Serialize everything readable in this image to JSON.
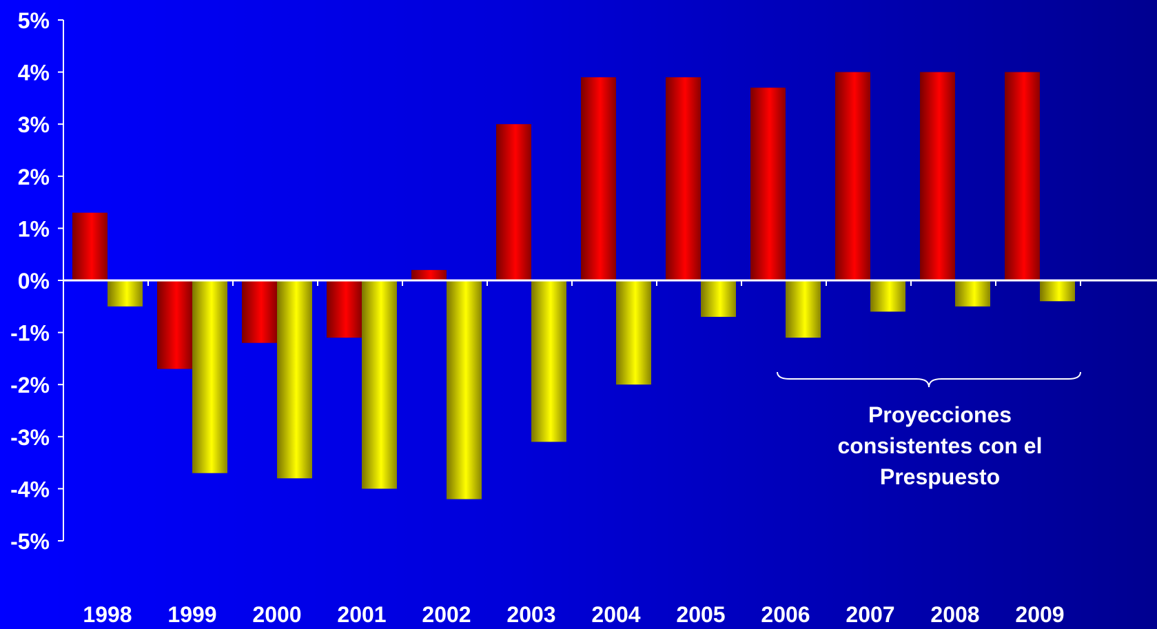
{
  "chart_data": {
    "type": "bar",
    "categories": [
      "1998",
      "1999",
      "2000",
      "2001",
      "2002",
      "2003",
      "2004",
      "2005",
      "2006",
      "2007",
      "2008",
      "2009"
    ],
    "series": [
      {
        "values": [
          1.3,
          -1.7,
          -1.2,
          -1.1,
          0.2,
          3.0,
          3.9,
          3.9,
          3.7,
          4.0,
          4.0,
          4.0
        ],
        "color": "#ff0000"
      },
      {
        "values": [
          -0.5,
          -3.7,
          -3.8,
          -4.0,
          -4.2,
          -3.1,
          -2.0,
          -0.7,
          -1.1,
          -0.6,
          -0.5,
          -0.4
        ],
        "color": "#ffff00"
      }
    ],
    "y_ticks": [
      "5%",
      "4%",
      "3%",
      "2%",
      "1%",
      "0%",
      "-1%",
      "-2%",
      "-3%",
      "-4%",
      "-5%"
    ],
    "ylim": [
      -5,
      5
    ],
    "grid": false,
    "annotation": {
      "lines": [
        "Proyecciones",
        "consistentes con el",
        "Prespuesto"
      ],
      "spans_categories": [
        "2006",
        "2009"
      ]
    }
  }
}
